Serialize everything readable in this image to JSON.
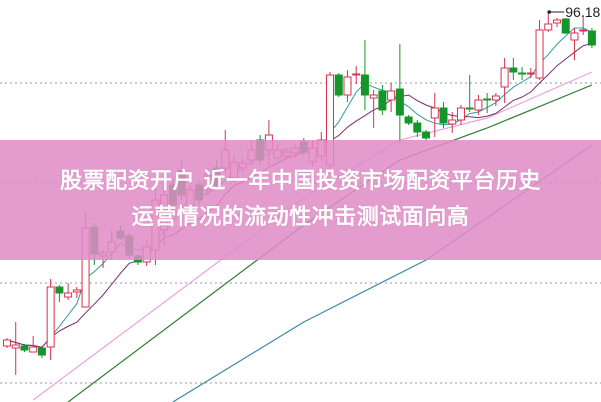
{
  "article": {
    "title_line1": "股票配资开户 近一年中国投资市场配资平台历史",
    "title_line2": "运营情况的流动性冲击测试面向高"
  },
  "colors": {
    "up": "#d8304c",
    "down": "#16962a",
    "banner": "#e08cc6",
    "ma_fast": "#2f9c9a",
    "ma_mid": "#7b2c6e",
    "ma_pink": "#e8a2e2",
    "ma_green": "#2e7d32",
    "ma_teal": "#3a8aa6"
  },
  "chart_data": {
    "type": "candlestick",
    "grid": "horizontal-dotted",
    "ylim": [
      57.18,
      97.38
    ],
    "max_label": "96.18",
    "ohlc": [
      [
        62.78,
        63.58,
        62.58,
        63.38
      ],
      [
        62.58,
        65.18,
        59.88,
        62.88
      ],
      [
        62.78,
        62.98,
        62.18,
        62.38
      ],
      [
        62.18,
        63.78,
        62.18,
        62.68
      ],
      [
        62.58,
        62.78,
        61.58,
        61.88
      ],
      [
        62.68,
        69.48,
        61.38,
        68.68
      ],
      [
        68.68,
        68.88,
        67.18,
        68.08
      ],
      [
        67.68,
        69.08,
        67.38,
        68.08
      ],
      [
        68.18,
        68.68,
        67.58,
        68.38
      ],
      [
        66.68,
        76.18,
        66.68,
        74.58
      ],
      [
        74.68,
        75.08,
        70.88,
        71.98
      ],
      [
        71.78,
        72.38,
        70.58,
        72.08
      ],
      [
        72.18,
        74.38,
        71.38,
        73.18
      ],
      [
        74.28,
        74.88,
        73.38,
        73.58
      ],
      [
        73.78,
        74.08,
        71.58,
        71.88
      ],
      [
        71.78,
        71.98,
        70.88,
        71.18
      ],
      [
        71.18,
        73.38,
        70.78,
        72.68
      ],
      [
        72.38,
        78.88,
        70.88,
        77.38
      ],
      [
        74.38,
        79.38,
        72.88,
        77.88
      ],
      [
        78.88,
        79.58,
        75.88,
        76.88
      ],
      [
        80.38,
        81.38,
        77.38,
        77.88
      ],
      [
        76.38,
        78.88,
        75.88,
        78.38
      ],
      [
        78.88,
        79.38,
        76.88,
        77.38
      ],
      [
        78.38,
        80.58,
        77.88,
        79.88
      ],
      [
        80.58,
        81.38,
        78.38,
        78.88
      ],
      [
        80.58,
        84.38,
        80.18,
        82.38
      ],
      [
        79.58,
        81.88,
        79.18,
        81.18
      ],
      [
        80.58,
        81.58,
        80.18,
        81.08
      ],
      [
        81.38,
        83.38,
        80.88,
        82.38
      ],
      [
        83.38,
        83.88,
        80.88,
        81.38
      ],
      [
        82.38,
        85.38,
        80.88,
        83.88
      ],
      [
        81.58,
        82.88,
        81.18,
        82.38
      ],
      [
        81.78,
        82.58,
        81.38,
        82.18
      ],
      [
        82.08,
        82.98,
        81.58,
        82.58
      ],
      [
        83.18,
        83.58,
        81.78,
        82.18
      ],
      [
        81.18,
        83.38,
        80.78,
        82.58
      ],
      [
        81.78,
        84.18,
        81.38,
        83.38
      ],
      [
        80.88,
        90.18,
        80.38,
        89.88
      ],
      [
        89.88,
        90.08,
        87.68,
        87.88
      ],
      [
        87.88,
        90.38,
        87.18,
        89.68
      ],
      [
        89.88,
        90.78,
        88.98,
        89.98
      ],
      [
        89.88,
        93.38,
        86.38,
        87.88
      ],
      [
        87.58,
        88.38,
        84.58,
        87.88
      ],
      [
        88.28,
        88.88,
        85.88,
        86.38
      ],
      [
        87.38,
        89.08,
        86.18,
        88.28
      ],
      [
        88.48,
        92.98,
        83.08,
        85.88
      ],
      [
        85.68,
        85.88,
        84.88,
        85.08
      ],
      [
        85.08,
        85.38,
        83.68,
        84.18
      ],
      [
        84.18,
        84.38,
        83.38,
        83.58
      ],
      [
        85.58,
        88.08,
        83.68,
        86.58
      ],
      [
        86.58,
        87.18,
        84.58,
        85.08
      ],
      [
        84.98,
        86.18,
        84.08,
        85.38
      ],
      [
        85.38,
        86.88,
        84.88,
        86.58
      ],
      [
        86.58,
        89.88,
        86.18,
        86.48
      ],
      [
        86.38,
        87.88,
        85.88,
        87.38
      ],
      [
        87.48,
        88.08,
        86.08,
        87.38
      ],
      [
        87.38,
        88.08,
        86.78,
        87.78
      ],
      [
        88.68,
        91.58,
        87.08,
        90.58
      ],
      [
        90.58,
        91.58,
        89.38,
        90.18
      ],
      [
        90.08,
        90.68,
        89.38,
        89.98
      ],
      [
        89.98,
        90.58,
        89.58,
        90.08
      ],
      [
        89.58,
        95.38,
        89.38,
        94.38
      ],
      [
        94.38,
        96.18,
        94.18,
        94.98
      ],
      [
        95.08,
        95.58,
        94.68,
        95.38
      ],
      [
        95.48,
        95.58,
        93.98,
        94.08
      ],
      [
        93.38,
        94.58,
        91.38,
        94.08
      ],
      [
        94.28,
        95.88,
        93.88,
        94.38
      ],
      [
        94.28,
        94.58,
        92.58,
        92.88
      ]
    ],
    "moving_averages_computed": [
      5,
      10
    ],
    "long_lines": [
      {
        "color_key": "ma_pink",
        "points": [
          [
            3,
            57.38
          ],
          [
            34,
            77.58
          ],
          [
            45,
            83.38
          ],
          [
            55,
            85.58
          ],
          [
            67,
            90.18
          ]
        ]
      },
      {
        "color_key": "ma_green",
        "points": [
          [
            7,
            57.18
          ],
          [
            34,
            74.88
          ],
          [
            45,
            81.38
          ],
          [
            55,
            84.58
          ],
          [
            67,
            88.88
          ]
        ]
      },
      {
        "color_key": "ma_teal",
        "points": [
          [
            19,
            57.18
          ],
          [
            34,
            65.18
          ],
          [
            48,
            71.38
          ],
          [
            67,
            82.88
          ]
        ]
      }
    ]
  }
}
